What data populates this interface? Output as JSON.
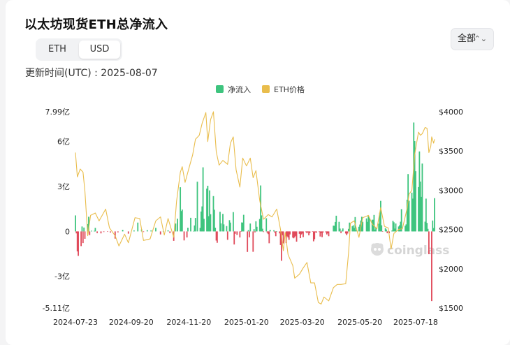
{
  "title": "以太坊现货ETH总净流入",
  "toggle": {
    "eth": "ETH",
    "usd": "USD"
  },
  "updated": "更新时间(UTC) : 2025-08-07",
  "filter": {
    "label": "全部"
  },
  "watermark": "coinglass",
  "chart_data": {
    "type": "bar+line",
    "legend": [
      "净流入",
      "ETH价格"
    ],
    "colors": {
      "inflow_pos": "#3ec47e",
      "inflow_neg": "#e04a5a",
      "price": "#e9bd4c"
    },
    "x_tick_labels": [
      "2024-07-23",
      "2024-09-20",
      "2024-11-20",
      "2025-01-20",
      "2025-03-20",
      "2025-05-20",
      "2025-07-18"
    ],
    "y_left": {
      "min": -5.11,
      "max": 7.99,
      "unit": "亿 USD",
      "tick_labels": [
        "7.99亿",
        "6亿",
        "3亿",
        "0",
        "-3亿",
        "-5.11亿"
      ],
      "tick_values": [
        7.99,
        6,
        3,
        0,
        -3,
        -5.11
      ]
    },
    "y_right": {
      "min": 1500,
      "max": 4000,
      "tick_labels": [
        "$4000",
        "$3500",
        "$3000",
        "$2500",
        "$2000",
        "$1500"
      ],
      "tick_values": [
        4000,
        3500,
        3000,
        2500,
        2000,
        1500
      ]
    },
    "x_start": "2024-07-23",
    "x_end": "2025-08-07",
    "flows": [
      [
        "2024-07-23",
        1.07
      ],
      [
        "2024-07-24",
        -0.13
      ],
      [
        "2024-07-25",
        -1.33
      ],
      [
        "2024-07-26",
        -1.63
      ],
      [
        "2024-07-29",
        -0.98
      ],
      [
        "2024-07-30",
        0.33
      ],
      [
        "2024-07-31",
        -0.78
      ],
      [
        "2024-08-01",
        0.26
      ],
      [
        "2024-08-02",
        -0.49
      ],
      [
        "2024-08-05",
        0.49
      ],
      [
        "2024-08-06",
        0.98
      ],
      [
        "2024-08-07",
        -0.24
      ],
      [
        "2024-08-09",
        0.05
      ],
      [
        "2024-08-12",
        0.04
      ],
      [
        "2024-08-13",
        0.24
      ],
      [
        "2024-08-15",
        -0.11
      ],
      [
        "2024-08-19",
        -0.13
      ],
      [
        "2024-08-22",
        -0.04
      ],
      [
        "2024-08-26",
        -0.03
      ],
      [
        "2024-08-29",
        -0.07
      ],
      [
        "2024-09-03",
        -0.48
      ],
      [
        "2024-09-06",
        -0.06
      ],
      [
        "2024-09-11",
        0.11
      ],
      [
        "2024-09-17",
        -0.15
      ],
      [
        "2024-09-23",
        0.07
      ],
      [
        "2024-09-27",
        0.59
      ],
      [
        "2024-10-01",
        0.14
      ],
      [
        "2024-10-03",
        -0.04
      ],
      [
        "2024-10-07",
        0.09
      ],
      [
        "2024-10-11",
        0.07
      ],
      [
        "2024-10-16",
        0.24
      ],
      [
        "2024-10-21",
        -0.2
      ],
      [
        "2024-10-24",
        0.02
      ],
      [
        "2024-10-29",
        0.08
      ],
      [
        "2024-10-31",
        -0.11
      ],
      [
        "2024-11-04",
        -0.63
      ],
      [
        "2024-11-06",
        0.53
      ],
      [
        "2024-11-08",
        0.85
      ],
      [
        "2024-11-11",
        2.95
      ],
      [
        "2024-11-12",
        1.36
      ],
      [
        "2024-11-13",
        1.46
      ],
      [
        "2024-11-15",
        -0.6
      ],
      [
        "2024-11-18",
        -0.4
      ],
      [
        "2024-11-19",
        0.25
      ],
      [
        "2024-11-22",
        0.91
      ],
      [
        "2024-11-25",
        0.03
      ],
      [
        "2024-11-26",
        0.4
      ],
      [
        "2024-11-27",
        0.9
      ],
      [
        "2024-11-29",
        3.32
      ],
      [
        "2024-12-02",
        0.24
      ],
      [
        "2024-12-03",
        1.33
      ],
      [
        "2024-12-04",
        1.67
      ],
      [
        "2024-12-05",
        4.28
      ],
      [
        "2024-12-06",
        0.84
      ],
      [
        "2024-12-09",
        2.86
      ],
      [
        "2024-12-10",
        3.05
      ],
      [
        "2024-12-11",
        1.02
      ],
      [
        "2024-12-12",
        2.74
      ],
      [
        "2024-12-13",
        1.15
      ],
      [
        "2024-12-16",
        2.36
      ],
      [
        "2024-12-17",
        1.45
      ],
      [
        "2024-12-18",
        0.25
      ],
      [
        "2024-12-19",
        -0.61
      ],
      [
        "2024-12-20",
        -0.76
      ],
      [
        "2024-12-23",
        1.31
      ],
      [
        "2024-12-24",
        0.54
      ],
      [
        "2024-12-26",
        1.17
      ],
      [
        "2024-12-27",
        0.47
      ],
      [
        "2024-12-30",
        0.36
      ],
      [
        "2024-12-31",
        -0.56
      ],
      [
        "2025-01-02",
        0.75
      ],
      [
        "2025-01-03",
        0.59
      ],
      [
        "2025-01-06",
        1.29
      ],
      [
        "2025-01-07",
        -0.87
      ],
      [
        "2025-01-08",
        -0.16
      ],
      [
        "2025-01-10",
        -0.23
      ],
      [
        "2025-01-13",
        -0.4
      ],
      [
        "2025-01-14",
        -0.03
      ],
      [
        "2025-01-15",
        0.6
      ],
      [
        "2025-01-16",
        0.59
      ],
      [
        "2025-01-17",
        1.11
      ],
      [
        "2025-01-21",
        -1.37
      ],
      [
        "2025-01-22",
        0.09
      ],
      [
        "2025-01-23",
        -0.39
      ],
      [
        "2025-01-24",
        0.53
      ],
      [
        "2025-01-27",
        -1.36
      ],
      [
        "2025-01-28",
        0.15
      ],
      [
        "2025-01-29",
        -0.06
      ],
      [
        "2025-01-30",
        0.68
      ],
      [
        "2025-01-31",
        0.31
      ],
      [
        "2025-02-03",
        0.83
      ],
      [
        "2025-02-04",
        3.07
      ],
      [
        "2025-02-05",
        1.07
      ],
      [
        "2025-02-06",
        0.18
      ],
      [
        "2025-02-07",
        -0.04
      ],
      [
        "2025-02-10",
        0.88
      ],
      [
        "2025-02-11",
        -0.09
      ],
      [
        "2025-02-12",
        -0.18
      ],
      [
        "2025-02-13",
        -0.79
      ],
      [
        "2025-02-14",
        0.11
      ],
      [
        "2025-02-18",
        0.08
      ],
      [
        "2025-02-19",
        -0.08
      ],
      [
        "2025-02-20",
        -0.32
      ],
      [
        "2025-02-21",
        0.01
      ],
      [
        "2025-02-24",
        -0.13
      ],
      [
        "2025-02-25",
        -0.91
      ],
      [
        "2025-02-26",
        -1.96
      ],
      [
        "2025-02-27",
        -0.25
      ],
      [
        "2025-02-28",
        -0.8
      ],
      [
        "2025-03-03",
        -0.78
      ],
      [
        "2025-03-04",
        -0.33
      ],
      [
        "2025-03-05",
        -0.4
      ],
      [
        "2025-03-06",
        -0.56
      ],
      [
        "2025-03-07",
        -0.2
      ],
      [
        "2025-03-10",
        -0.41
      ],
      [
        "2025-03-11",
        -0.46
      ],
      [
        "2025-03-12",
        -0.38
      ],
      [
        "2025-03-13",
        -0.3
      ],
      [
        "2025-03-14",
        -0.68
      ],
      [
        "2025-03-17",
        -0.16
      ],
      [
        "2025-03-18",
        -0.45
      ],
      [
        "2025-03-19",
        -0.2
      ],
      [
        "2025-03-20",
        -0.14
      ],
      [
        "2025-03-21",
        -0.38
      ],
      [
        "2025-03-24",
        -0.05
      ],
      [
        "2025-03-25",
        -0.12
      ],
      [
        "2025-03-26",
        -0.05
      ],
      [
        "2025-03-27",
        -0.26
      ],
      [
        "2025-03-28",
        -0.11
      ],
      [
        "2025-03-31",
        -0.03
      ],
      [
        "2025-04-01",
        -0.66
      ],
      [
        "2025-04-02",
        -0.52
      ],
      [
        "2025-04-03",
        -0.06
      ],
      [
        "2025-04-04",
        -0.08
      ],
      [
        "2025-04-07",
        -0.04
      ],
      [
        "2025-04-08",
        -0.34
      ],
      [
        "2025-04-09",
        -0.11
      ],
      [
        "2025-04-10",
        -0.38
      ],
      [
        "2025-04-11",
        -0.07
      ],
      [
        "2025-04-14",
        -0.06
      ],
      [
        "2025-04-15",
        -0.2
      ],
      [
        "2025-04-16",
        -0.12
      ],
      [
        "2025-04-17",
        -0.32
      ],
      [
        "2025-04-22",
        0.39
      ],
      [
        "2025-04-23",
        0.38
      ],
      [
        "2025-04-24",
        0.63
      ],
      [
        "2025-04-25",
        1.05
      ],
      [
        "2025-04-28",
        0.64
      ],
      [
        "2025-04-29",
        0.19
      ],
      [
        "2025-04-30",
        -0.11
      ],
      [
        "2025-05-01",
        0.06
      ],
      [
        "2025-05-02",
        0.2
      ],
      [
        "2025-05-05",
        -0.14
      ],
      [
        "2025-05-06",
        -0.24
      ],
      [
        "2025-05-07",
        -0.14
      ],
      [
        "2025-05-08",
        0.17
      ],
      [
        "2025-05-09",
        0.59
      ],
      [
        "2025-05-12",
        0.35
      ],
      [
        "2025-05-13",
        0.41
      ],
      [
        "2025-05-14",
        0.23
      ],
      [
        "2025-05-15",
        0.96
      ],
      [
        "2025-05-16",
        0.09
      ],
      [
        "2025-05-19",
        0.31
      ],
      [
        "2025-05-20",
        0.46
      ],
      [
        "2025-05-21",
        0.73
      ],
      [
        "2025-05-22",
        0.98
      ],
      [
        "2025-05-23",
        0.64
      ],
      [
        "2025-05-27",
        0.87
      ],
      [
        "2025-05-28",
        0.64
      ],
      [
        "2025-05-29",
        1.06
      ],
      [
        "2025-05-30",
        0.91
      ],
      [
        "2025-06-02",
        0.78
      ],
      [
        "2025-06-03",
        0.78
      ],
      [
        "2025-06-04",
        1.1
      ],
      [
        "2025-06-05",
        0.12
      ],
      [
        "2025-06-06",
        0.25
      ],
      [
        "2025-06-09",
        0.52
      ],
      [
        "2025-06-10",
        1.25
      ],
      [
        "2025-06-11",
        2.04
      ],
      [
        "2025-06-12",
        0.41
      ],
      [
        "2025-06-13",
        -0.02
      ],
      [
        "2025-06-16",
        0.22
      ],
      [
        "2025-06-17",
        0.13
      ],
      [
        "2025-06-18",
        -0.12
      ],
      [
        "2025-06-19",
        0.03
      ],
      [
        "2025-06-20",
        -0.12
      ],
      [
        "2025-06-23",
        0.06
      ],
      [
        "2025-06-24",
        0.71
      ],
      [
        "2025-06-25",
        0.61
      ],
      [
        "2025-06-26",
        0.19
      ],
      [
        "2025-06-27",
        0.53
      ],
      [
        "2025-06-30",
        0.33
      ],
      [
        "2025-07-01",
        0.41
      ],
      [
        "2025-07-02",
        0.65
      ],
      [
        "2025-07-03",
        1.49
      ],
      [
        "2025-07-07",
        0.38
      ],
      [
        "2025-07-08",
        0.47
      ],
      [
        "2025-07-09",
        2.12
      ],
      [
        "2025-07-10",
        3.83
      ],
      [
        "2025-07-11",
        2.05
      ],
      [
        "2025-07-14",
        2.59
      ],
      [
        "2025-07-15",
        2.19
      ],
      [
        "2025-07-16",
        7.27
      ],
      [
        "2025-07-17",
        6.03
      ],
      [
        "2025-07-18",
        4.02
      ],
      [
        "2025-07-21",
        2.96
      ],
      [
        "2025-07-22",
        5.34
      ],
      [
        "2025-07-23",
        3.33
      ],
      [
        "2025-07-24",
        2.31
      ],
      [
        "2025-07-25",
        4.53
      ],
      [
        "2025-07-28",
        0.65
      ],
      [
        "2025-07-29",
        2.19
      ],
      [
        "2025-07-30",
        0.57
      ],
      [
        "2025-07-31",
        0.17
      ],
      [
        "2025-08-01",
        -1.52
      ],
      [
        "2025-08-04",
        -4.65
      ],
      [
        "2025-08-05",
        0.73
      ],
      [
        "2025-08-06",
        0.23
      ],
      [
        "2025-08-07",
        2.22
      ]
    ],
    "price": [
      [
        "2024-07-23",
        3480
      ],
      [
        "2024-07-25",
        3170
      ],
      [
        "2024-07-28",
        3270
      ],
      [
        "2024-07-31",
        3230
      ],
      [
        "2024-08-02",
        2990
      ],
      [
        "2024-08-05",
        2420
      ],
      [
        "2024-08-08",
        2680
      ],
      [
        "2024-08-13",
        2710
      ],
      [
        "2024-08-17",
        2610
      ],
      [
        "2024-08-24",
        2760
      ],
      [
        "2024-08-28",
        2520
      ],
      [
        "2024-09-03",
        2420
      ],
      [
        "2024-09-07",
        2290
      ],
      [
        "2024-09-13",
        2440
      ],
      [
        "2024-09-17",
        2330
      ],
      [
        "2024-09-24",
        2650
      ],
      [
        "2024-09-29",
        2640
      ],
      [
        "2024-10-03",
        2360
      ],
      [
        "2024-10-10",
        2380
      ],
      [
        "2024-10-16",
        2610
      ],
      [
        "2024-10-21",
        2660
      ],
      [
        "2024-10-25",
        2430
      ],
      [
        "2024-10-29",
        2640
      ],
      [
        "2024-11-04",
        2400
      ],
      [
        "2024-11-07",
        2860
      ],
      [
        "2024-11-11",
        3230
      ],
      [
        "2024-11-13",
        3300
      ],
      [
        "2024-11-16",
        3100
      ],
      [
        "2024-11-21",
        3320
      ],
      [
        "2024-11-24",
        3450
      ],
      [
        "2024-11-27",
        3650
      ],
      [
        "2024-12-01",
        3700
      ],
      [
        "2024-12-04",
        3850
      ],
      [
        "2024-12-08",
        3990
      ],
      [
        "2024-12-10",
        3620
      ],
      [
        "2024-12-13",
        3900
      ],
      [
        "2024-12-16",
        4000
      ],
      [
        "2024-12-19",
        3490
      ],
      [
        "2024-12-22",
        3320
      ],
      [
        "2024-12-26",
        3380
      ],
      [
        "2024-12-31",
        3330
      ],
      [
        "2025-01-03",
        3600
      ],
      [
        "2025-01-06",
        3680
      ],
      [
        "2025-01-09",
        3260
      ],
      [
        "2025-01-13",
        3040
      ],
      [
        "2025-01-16",
        3410
      ],
      [
        "2025-01-20",
        3310
      ],
      [
        "2025-01-24",
        3410
      ],
      [
        "2025-01-27",
        3160
      ],
      [
        "2025-01-30",
        3250
      ],
      [
        "2025-02-03",
        2870
      ],
      [
        "2025-02-07",
        2630
      ],
      [
        "2025-02-12",
        2690
      ],
      [
        "2025-02-16",
        2660
      ],
      [
        "2025-02-21",
        2760
      ],
      [
        "2025-02-25",
        2500
      ],
      [
        "2025-02-28",
        2230
      ],
      [
        "2025-03-02",
        2460
      ],
      [
        "2025-03-05",
        2180
      ],
      [
        "2025-03-10",
        2040
      ],
      [
        "2025-03-12",
        1880
      ],
      [
        "2025-03-17",
        1930
      ],
      [
        "2025-03-21",
        2010
      ],
      [
        "2025-03-25",
        2080
      ],
      [
        "2025-03-29",
        1820
      ],
      [
        "2025-04-02",
        1820
      ],
      [
        "2025-04-06",
        1570
      ],
      [
        "2025-04-09",
        1550
      ],
      [
        "2025-04-12",
        1640
      ],
      [
        "2025-04-17",
        1590
      ],
      [
        "2025-04-22",
        1760
      ],
      [
        "2025-04-26",
        1800
      ],
      [
        "2025-04-30",
        1800
      ],
      [
        "2025-05-05",
        1810
      ],
      [
        "2025-05-08",
        2200
      ],
      [
        "2025-05-10",
        2580
      ],
      [
        "2025-05-14",
        2610
      ],
      [
        "2025-05-19",
        2400
      ],
      [
        "2025-05-23",
        2650
      ],
      [
        "2025-05-29",
        2680
      ],
      [
        "2025-06-02",
        2570
      ],
      [
        "2025-06-07",
        2510
      ],
      [
        "2025-06-11",
        2780
      ],
      [
        "2025-06-15",
        2540
      ],
      [
        "2025-06-19",
        2520
      ],
      [
        "2025-06-22",
        2250
      ],
      [
        "2025-06-25",
        2450
      ],
      [
        "2025-06-30",
        2500
      ],
      [
        "2025-07-04",
        2510
      ],
      [
        "2025-07-09",
        2770
      ],
      [
        "2025-07-11",
        2950
      ],
      [
        "2025-07-14",
        3000
      ],
      [
        "2025-07-17",
        3450
      ],
      [
        "2025-07-19",
        3600
      ],
      [
        "2025-07-21",
        3740
      ],
      [
        "2025-07-23",
        3700
      ],
      [
        "2025-07-25",
        3720
      ],
      [
        "2025-07-28",
        3800
      ],
      [
        "2025-07-30",
        3790
      ],
      [
        "2025-08-01",
        3480
      ],
      [
        "2025-08-03",
        3560
      ],
      [
        "2025-08-04",
        3680
      ],
      [
        "2025-08-06",
        3600
      ],
      [
        "2025-08-07",
        3650
      ]
    ]
  }
}
